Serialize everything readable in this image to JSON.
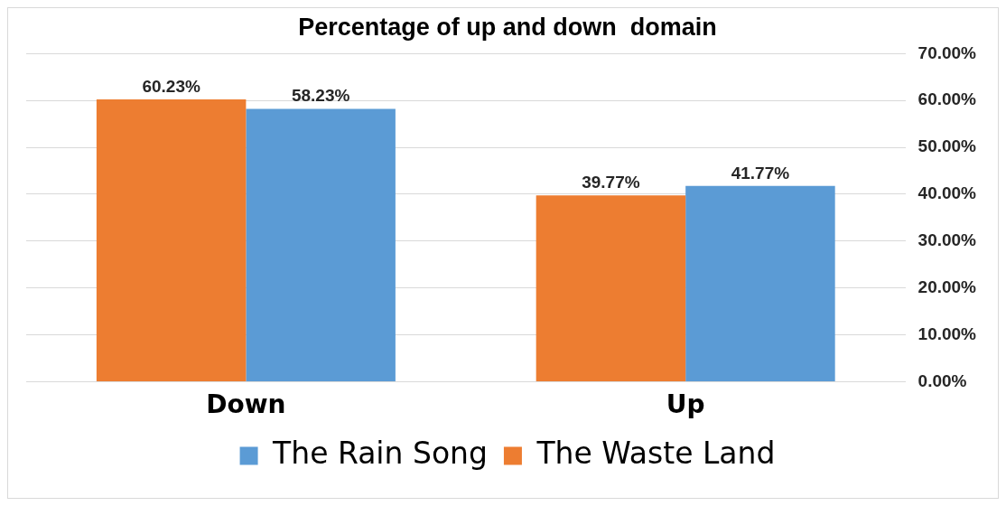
{
  "chart_data": {
    "type": "bar",
    "title": "Percentage of up and down  domain",
    "categories": [
      "Down",
      "Up"
    ],
    "series": [
      {
        "name": "The Waste Land",
        "color": "#ed7d31",
        "values": [
          60.23,
          39.77
        ],
        "value_labels": [
          "60.23%",
          "39.77%"
        ]
      },
      {
        "name": "The Rain Song",
        "color": "#5b9bd5",
        "values": [
          58.23,
          41.77
        ],
        "value_labels": [
          "58.23%",
          "41.77%"
        ]
      }
    ],
    "ylim": [
      0,
      70
    ],
    "yticks": [
      {
        "value": 0,
        "label": "0.00%"
      },
      {
        "value": 10,
        "label": "10.00%"
      },
      {
        "value": 20,
        "label": "20.00%"
      },
      {
        "value": 30,
        "label": "30.00%"
      },
      {
        "value": 40,
        "label": "40.00%"
      },
      {
        "value": 50,
        "label": "50.00%"
      },
      {
        "value": 60,
        "label": "60.00%"
      },
      {
        "value": 70,
        "label": "70.00%"
      }
    ],
    "grid": "y",
    "legend": "bottom"
  }
}
